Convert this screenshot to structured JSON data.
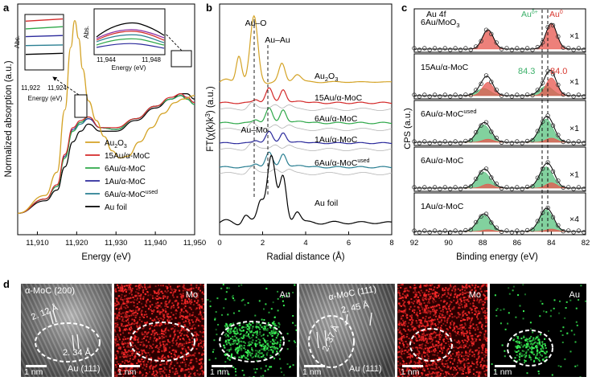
{
  "panels": {
    "a": "a",
    "b": "b",
    "c": "c",
    "d": "d"
  },
  "colors": {
    "au2o3": "#d4a326",
    "au15": "#d42a2a",
    "au6": "#2fa84a",
    "au1": "#2b2a9c",
    "au6used": "#2a7f92",
    "aufoil": "#000000",
    "ref": "#b4b4b4",
    "peak_red": "#e7564d",
    "peak_green": "#58c27e",
    "ydash": "#555555"
  },
  "panel_a": {
    "xlabel": "Energy (eV)",
    "ylabel": "Normalized absorption (a.u.)",
    "inset_ylabel": "Abs.",
    "inset_xlabel": "Energy (eV)",
    "chart_data": {
      "type": "line",
      "xlabel": "Energy (eV)",
      "ylabel": "Normalized absorption (a.u.)",
      "xlim": [
        11905,
        11950
      ],
      "ticks": [
        "11,910",
        "11,920",
        "11,930",
        "11,940",
        "11,950"
      ],
      "legend_position": "center-right",
      "series": [
        {
          "name": "Au2O3",
          "label": "Au",
          "sub": "2",
          "tail": "O",
          "sub2": "3",
          "x": [
            11905,
            11912,
            11915,
            11917,
            11918.5,
            11919.5,
            11920.5,
            11921.5,
            11923,
            11925,
            11927,
            11929,
            11931,
            11933,
            11936,
            11939,
            11942,
            11945,
            11947,
            11950
          ],
          "y": [
            0.12,
            0.22,
            0.35,
            0.7,
            1.05,
            1.2,
            1.1,
            0.93,
            0.75,
            0.64,
            0.55,
            0.47,
            0.43,
            0.44,
            0.52,
            0.6,
            0.68,
            0.74,
            0.76,
            0.78
          ]
        },
        {
          "name": "15Au/α-MoC",
          "label": "15Au/α-MoC",
          "x": [
            11905,
            11912,
            11915,
            11917,
            11919,
            11921,
            11923,
            11926,
            11930,
            11935,
            11940,
            11944,
            11946.5,
            11948,
            11950
          ],
          "y": [
            0.12,
            0.2,
            0.28,
            0.45,
            0.6,
            0.64,
            0.66,
            0.6,
            0.6,
            0.65,
            0.72,
            0.77,
            0.79,
            0.77,
            0.74
          ]
        },
        {
          "name": "6Au/α-MoC",
          "label": "6Au/α-MoC",
          "x": [
            11905,
            11912,
            11915,
            11917,
            11919,
            11921,
            11923,
            11926,
            11930,
            11935,
            11940,
            11944,
            11946.5,
            11948,
            11950
          ],
          "y": [
            0.12,
            0.2,
            0.27,
            0.43,
            0.58,
            0.63,
            0.66,
            0.6,
            0.59,
            0.65,
            0.72,
            0.76,
            0.78,
            0.76,
            0.73
          ]
        },
        {
          "name": "1Au/α-MoC",
          "label": "1Au/α-MoC",
          "x": [
            11905,
            11912,
            11915,
            11917,
            11919,
            11921,
            11923,
            11926,
            11930,
            11935,
            11940,
            11944,
            11946.5,
            11948,
            11950
          ],
          "y": [
            0.12,
            0.2,
            0.27,
            0.44,
            0.59,
            0.63,
            0.65,
            0.6,
            0.59,
            0.65,
            0.72,
            0.76,
            0.78,
            0.77,
            0.74
          ]
        },
        {
          "name": "6Au/α-MoC used",
          "label": "6Au/α-MoC",
          "sup": "used",
          "x": [
            11905,
            11912,
            11915,
            11917,
            11919,
            11921,
            11923,
            11926,
            11930,
            11935,
            11940,
            11944,
            11946.5,
            11948,
            11950
          ],
          "y": [
            0.12,
            0.2,
            0.27,
            0.43,
            0.58,
            0.62,
            0.65,
            0.6,
            0.59,
            0.65,
            0.72,
            0.76,
            0.78,
            0.76,
            0.73
          ]
        },
        {
          "name": "Au foil",
          "label": "Au foil",
          "x": [
            11905,
            11912,
            11915,
            11917,
            11919,
            11921,
            11923,
            11926,
            11930,
            11935,
            11940,
            11944,
            11946.5,
            11948,
            11950
          ],
          "y": [
            0.12,
            0.19,
            0.25,
            0.38,
            0.52,
            0.58,
            0.62,
            0.58,
            0.58,
            0.64,
            0.71,
            0.76,
            0.79,
            0.79,
            0.76
          ]
        }
      ]
    },
    "inset1": {
      "ticks": [
        "11,922",
        "11,924"
      ],
      "xlim": [
        11921.5,
        11924.5
      ],
      "order": [
        "au15",
        "au6",
        "au1",
        "au6used",
        "aufoil"
      ],
      "y": {
        "au15": [
          0.88,
          0.92
        ],
        "au6": [
          0.74,
          0.78
        ],
        "au1": [
          0.6,
          0.62
        ],
        "au6used": [
          0.44,
          0.45
        ],
        "aufoil": [
          0.28,
          0.3
        ]
      }
    },
    "inset2": {
      "ticks": [
        "11,944",
        "11,948"
      ],
      "xlim": [
        11943,
        11949
      ]
    }
  },
  "panel_b": {
    "xlabel": "Radial distance (Å)",
    "ylabel": "FT(χ(k)k³) (a.u.)",
    "ylabel_main": "FT(χ(k)k",
    "ylabel_sup": "3",
    "ylabel_tail": ") (a.u.)",
    "chart_data": {
      "type": "line",
      "xlabel": "Radial distance (Å)",
      "ylabel": "FT(χ(k)k³) (a.u.)",
      "xlim": [
        0,
        8
      ],
      "ticks": [
        "0",
        "2",
        "4",
        "6",
        "8"
      ],
      "dashed_lines": [
        {
          "label": "Au–O",
          "x": 1.6
        },
        {
          "label": "Au–Au",
          "x": 2.3
        },
        {
          "label": "Au–Mo",
          "x": 2.2
        }
      ],
      "series": [
        {
          "name": "Au2O3",
          "offset": 0.85,
          "amp": 1.0
        },
        {
          "name": "15Au/α-MoC",
          "offset": 0.65,
          "amp": 0.6
        },
        {
          "name": "6Au/α-MoC",
          "offset": 0.52,
          "amp": 0.6
        },
        {
          "name": "1Au/α-MoC",
          "offset": 0.38,
          "amp": 0.5
        },
        {
          "name": "6Au/α-MoC used",
          "offset": 0.26,
          "amp": 0.6
        },
        {
          "name": "Au foil",
          "offset": 0.02,
          "amp": 0.95
        }
      ]
    },
    "labels": {
      "au_o": "Au–O",
      "au_au": "Au–Au",
      "au_mo": "Au–Mo"
    },
    "curve_labels": {
      "au2o3": {
        "a": "Au",
        "s1": "2",
        "b": "O",
        "s2": "3"
      },
      "au15": "15Au/α-MoC",
      "au6": "6Au/α-MoC",
      "au1": "1Au/α-MoC",
      "au6used": "6Au/α-MoC",
      "au6used_sup": "used",
      "aufoil": "Au foil"
    }
  },
  "panel_c": {
    "title": "Au 4f",
    "xlabel": "Binding energy (eV)",
    "ylabel": "CPS (a.u.)",
    "legend": {
      "green": "Au",
      "green_sup": "δ+",
      "red": "Au",
      "red_sup": "0"
    },
    "annot": {
      "green_val": "84.3",
      "red_val": "84.0"
    },
    "chart_data": {
      "type": "line",
      "xlabel": "Binding energy (eV)",
      "ylabel": "CPS (a.u.)",
      "xlim": [
        92,
        82
      ],
      "ticks": [
        "92",
        "90",
        "88",
        "86",
        "84",
        "82"
      ],
      "dashed_lines": [
        84.3,
        84.0
      ],
      "subpanels": [
        {
          "name": "6Au/MoO3",
          "label": "6Au/MoO",
          "sub": "3",
          "mult": "×1",
          "green": 0.0,
          "red": 1.0
        },
        {
          "name": "15Au/α-MoC",
          "label": "15Au/α-MoC",
          "mult": "×1",
          "green": 0.35,
          "red": 0.65
        },
        {
          "name": "6Au/α-MoC used",
          "label": "6Au/α-MoC",
          "sup": "used",
          "mult": "×1",
          "green": 0.85,
          "red": 0.15
        },
        {
          "name": "6Au/α-MoC",
          "label": "6Au/α-MoC",
          "mult": "×1",
          "green": 0.8,
          "red": 0.2
        },
        {
          "name": "1Au/α-MoC",
          "label": "1Au/α-MoC",
          "mult": "×4",
          "green": 0.9,
          "red": 0.1
        }
      ]
    }
  },
  "panel_d": {
    "scale": "1 nm",
    "label_mo": "Mo",
    "label_au": "Au",
    "tem1": {
      "plane_top": "α-MoC (200)",
      "plane_bottom": "Au (111)",
      "d1": "2. 12 Å",
      "d2": "2. 34 Å"
    },
    "tem2": {
      "plane_top": "α-MoC (111)",
      "plane_bottom": "Au (111)",
      "d1": "2. 45 Å",
      "d2": "2. 37 Å"
    }
  }
}
